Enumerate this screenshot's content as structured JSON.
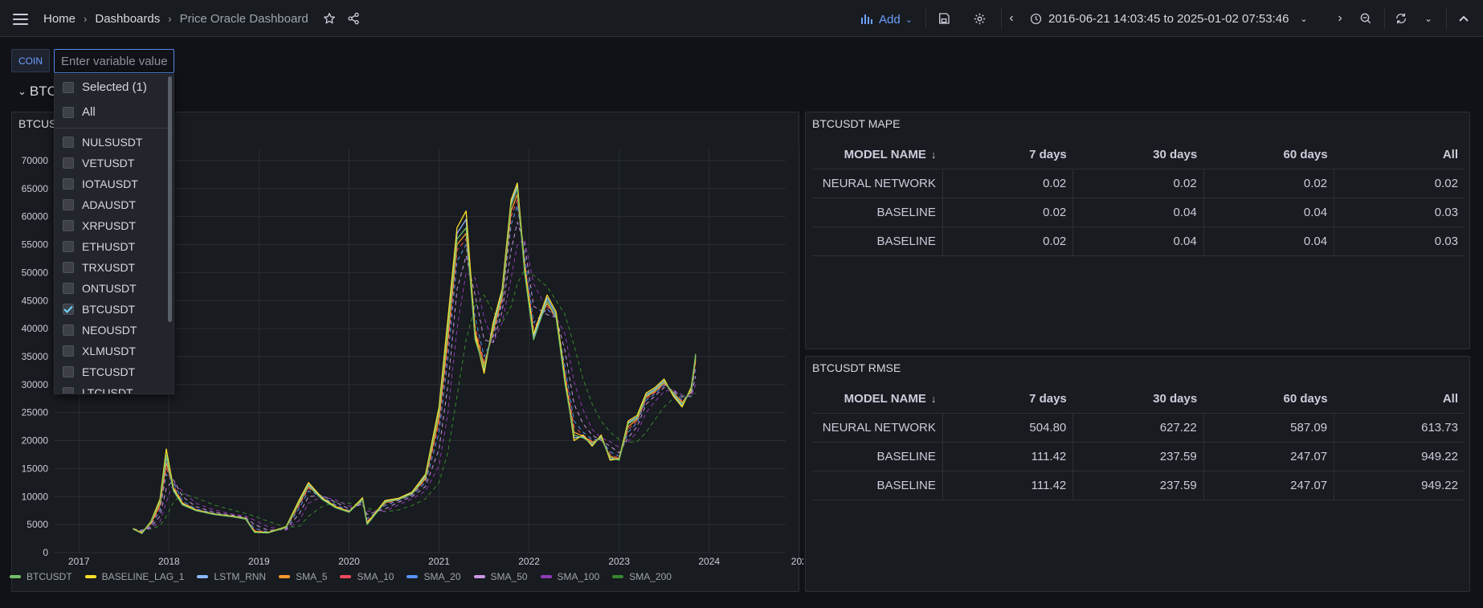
{
  "nav": {
    "home": "Home",
    "dashboards": "Dashboards",
    "current": "Price Oracle Dashboard",
    "add_label": "Add",
    "time_range": "2016-06-21 14:03:45 to 2025-01-02 07:53:46"
  },
  "variable": {
    "label": "COIN",
    "placeholder": "Enter variable value",
    "options_top": [
      "Selected (1)",
      "All"
    ],
    "options": [
      {
        "label": "NULSUSDT",
        "checked": false
      },
      {
        "label": "VETUSDT",
        "checked": false
      },
      {
        "label": "IOTAUSDT",
        "checked": false
      },
      {
        "label": "ADAUSDT",
        "checked": false
      },
      {
        "label": "XRPUSDT",
        "checked": false
      },
      {
        "label": "ETHUSDT",
        "checked": false
      },
      {
        "label": "TRXUSDT",
        "checked": false
      },
      {
        "label": "ONTUSDT",
        "checked": false
      },
      {
        "label": "BTCUSDT",
        "checked": true
      },
      {
        "label": "NEOUSDT",
        "checked": false
      },
      {
        "label": "XLMUSDT",
        "checked": false
      },
      {
        "label": "ETCUSDT",
        "checked": false
      },
      {
        "label": "LTCUSDT",
        "checked": false
      }
    ]
  },
  "row": {
    "title": "BTCUSDT"
  },
  "chart_panel": {
    "title": "BTCUSDT"
  },
  "chart_data": {
    "type": "line",
    "title": "BTCUSDT",
    "xlabel": "",
    "ylabel": "",
    "x_ticks": [
      "2017",
      "2018",
      "2019",
      "2020",
      "2021",
      "2022",
      "2023",
      "2024",
      "202"
    ],
    "y_ticks": [
      "0",
      "5000",
      "10000",
      "15000",
      "20000",
      "25000",
      "30000",
      "35000",
      "40000",
      "45000",
      "50000",
      "55000",
      "60000",
      "65000",
      "70000"
    ],
    "xlim": [
      2016.73,
      2024.85
    ],
    "ylim": [
      0,
      72000
    ],
    "grid": true,
    "legend_position": "bottom-left",
    "x": [
      2017.6,
      2017.7,
      2017.8,
      2017.9,
      2017.97,
      2018.05,
      2018.15,
      2018.3,
      2018.5,
      2018.7,
      2018.85,
      2018.95,
      2019.1,
      2019.3,
      2019.45,
      2019.55,
      2019.7,
      2019.85,
      2020.0,
      2020.15,
      2020.2,
      2020.4,
      2020.55,
      2020.7,
      2020.85,
      2021.0,
      2021.1,
      2021.2,
      2021.3,
      2021.4,
      2021.5,
      2021.6,
      2021.7,
      2021.8,
      2021.87,
      2021.95,
      2022.05,
      2022.2,
      2022.3,
      2022.4,
      2022.5,
      2022.6,
      2022.7,
      2022.8,
      2022.9,
      2023.0,
      2023.1,
      2023.2,
      2023.3,
      2023.4,
      2023.5,
      2023.6,
      2023.7,
      2023.8,
      2023.85
    ],
    "series": [
      {
        "name": "BTCUSDT",
        "color": "#73bf69",
        "values": [
          4200,
          3400,
          5500,
          9000,
          17500,
          11000,
          8500,
          7500,
          6800,
          6400,
          6000,
          3600,
          3500,
          4500,
          9000,
          12000,
          9500,
          8000,
          7200,
          9500,
          5000,
          9000,
          9500,
          10500,
          13500,
          25000,
          40000,
          56000,
          58000,
          38000,
          33000,
          40000,
          46000,
          62000,
          65000,
          50000,
          38000,
          45000,
          42000,
          30000,
          21000,
          20500,
          19500,
          20500,
          17000,
          16500,
          23000,
          24000,
          28000,
          29000,
          30500,
          28500,
          26500,
          29000,
          35500
        ]
      },
      {
        "name": "BASELINE_LAG_1",
        "color": "#fade2a",
        "values": [
          4300,
          3500,
          5600,
          9500,
          18500,
          11500,
          8800,
          7600,
          6900,
          6500,
          6100,
          3700,
          3600,
          4600,
          9500,
          12500,
          9800,
          8200,
          7300,
          9800,
          5200,
          9300,
          9700,
          10800,
          14000,
          26000,
          42000,
          58000,
          61000,
          39000,
          32000,
          41000,
          47000,
          63000,
          66000,
          51000,
          39000,
          46000,
          43000,
          31000,
          20000,
          21000,
          19000,
          21000,
          16500,
          16800,
          23500,
          24500,
          28500,
          29500,
          31000,
          28000,
          26000,
          29500,
          35000
        ]
      },
      {
        "name": "LSTM_RNN",
        "color": "#8ab8ff",
        "values": [
          4250,
          3450,
          5500,
          9200,
          17000,
          11200,
          8600,
          7500,
          6850,
          6450,
          6050,
          3650,
          3550,
          4550,
          9200,
          12200,
          9600,
          8100,
          7250,
          9600,
          5100,
          9100,
          9600,
          10600,
          13700,
          25500,
          41000,
          57000,
          59500,
          38500,
          32500,
          40500,
          46500,
          62500,
          65500,
          50500,
          38500,
          45500,
          42500,
          30500,
          20500,
          20700,
          19200,
          20700,
          16700,
          16600,
          23200,
          24200,
          28200,
          29200,
          30700,
          28200,
          26200,
          29200,
          35200
        ]
      },
      {
        "name": "SMA_5",
        "color": "#ff9830",
        "values": [
          4200,
          3600,
          5200,
          8500,
          16000,
          11500,
          8700,
          7600,
          6850,
          6450,
          6050,
          3800,
          3550,
          4450,
          8800,
          11800,
          9700,
          8200,
          7300,
          9400,
          5400,
          8900,
          9500,
          10500,
          13200,
          24000,
          38500,
          55000,
          57000,
          39500,
          33500,
          39500,
          45500,
          61000,
          64000,
          51000,
          39000,
          44500,
          42000,
          31000,
          21500,
          20800,
          19700,
          20400,
          17200,
          16700,
          22500,
          23800,
          27800,
          28800,
          30300,
          28600,
          26800,
          28800,
          34500
        ]
      },
      {
        "name": "SMA_10",
        "color": "#f2495c",
        "values": [
          4200,
          3700,
          5000,
          8000,
          15000,
          12000,
          8900,
          7700,
          6900,
          6500,
          6100,
          4000,
          3600,
          4400,
          8500,
          11500,
          9800,
          8300,
          7400,
          9300,
          5600,
          8700,
          9400,
          10400,
          13000,
          23000,
          37000,
          54000,
          56000,
          40500,
          34000,
          39000,
          45000,
          60000,
          63000,
          52000,
          40000,
          44000,
          42000,
          32000,
          22500,
          21000,
          19900,
          20300,
          17500,
          16900,
          22000,
          23500,
          27500,
          28600,
          30100,
          28700,
          27000,
          28600,
          34000
        ]
      },
      {
        "name": "SMA_20",
        "color": "#5794f2",
        "values": [
          4200,
          3800,
          4800,
          7500,
          14000,
          12500,
          9200,
          7800,
          7000,
          6550,
          6150,
          4300,
          3700,
          4300,
          8000,
          11000,
          10000,
          8500,
          7500,
          9100,
          6000,
          8400,
          9300,
          10300,
          12500,
          21500,
          35000,
          52000,
          55000,
          42000,
          35000,
          38500,
          44500,
          58500,
          62000,
          53000,
          41000,
          43500,
          42000,
          33000,
          23500,
          21500,
          20200,
          20200,
          18000,
          17200,
          21500,
          23200,
          27200,
          28400,
          29900,
          28800,
          27300,
          28400,
          33000
        ]
      },
      {
        "name": "SMA_50",
        "color": "#ca95e5",
        "values": [
          4200,
          3900,
          4500,
          6500,
          11500,
          13000,
          10000,
          8200,
          7200,
          6700,
          6300,
          5000,
          4000,
          4100,
          7000,
          10000,
          10200,
          9000,
          7800,
          8700,
          6800,
          7800,
          9000,
          10000,
          11800,
          18500,
          30000,
          47000,
          53000,
          46000,
          38000,
          37500,
          43000,
          54000,
          59000,
          55000,
          44000,
          42500,
          42000,
          36000,
          26500,
          23000,
          21000,
          20000,
          19000,
          17800,
          20500,
          22500,
          26500,
          28000,
          29500,
          29000,
          27800,
          28000,
          31500
        ]
      },
      {
        "name": "SMA_100",
        "color": "#8f3bb8",
        "values": [
          4200,
          4000,
          4300,
          5500,
          9000,
          12500,
          11000,
          8800,
          7600,
          6900,
          6500,
          5800,
          4600,
          4000,
          5800,
          8800,
          10000,
          9400,
          8300,
          8400,
          7400,
          7400,
          8500,
          9600,
          11000,
          15500,
          25000,
          40000,
          50000,
          49000,
          42000,
          37500,
          41000,
          49000,
          55000,
          56000,
          48000,
          43500,
          42000,
          39000,
          30500,
          25500,
          22000,
          20500,
          19800,
          18800,
          19800,
          21500,
          25000,
          27000,
          28800,
          29000,
          28200,
          27800,
          30000
        ]
      },
      {
        "name": "SMA_200",
        "color": "#37872d",
        "values": [
          4200,
          4100,
          4200,
          4800,
          6500,
          9000,
          10500,
          9800,
          8500,
          7600,
          7000,
          6500,
          5600,
          4500,
          4700,
          6500,
          8200,
          9000,
          8800,
          8400,
          7900,
          7300,
          7600,
          8400,
          9600,
          12500,
          18000,
          28000,
          38000,
          44000,
          46000,
          43000,
          41000,
          44000,
          48000,
          50500,
          49500,
          47500,
          45000,
          42500,
          37000,
          31000,
          26500,
          23500,
          21500,
          20200,
          19700,
          19800,
          21500,
          23800,
          26000,
          27500,
          28000,
          27800,
          28500
        ]
      }
    ]
  },
  "mape": {
    "title": "BTCUSDT MAPE",
    "columns": [
      "MODEL NAME",
      "7 days",
      "30 days",
      "60 days",
      "All"
    ],
    "rows": [
      [
        "NEURAL NETWORK",
        "0.02",
        "0.02",
        "0.02",
        "0.02"
      ],
      [
        "BASELINE",
        "0.02",
        "0.04",
        "0.04",
        "0.03"
      ],
      [
        "BASELINE",
        "0.02",
        "0.04",
        "0.04",
        "0.03"
      ]
    ]
  },
  "rmse": {
    "title": "BTCUSDT RMSE",
    "columns": [
      "MODEL NAME",
      "7 days",
      "30 days",
      "60 days",
      "All"
    ],
    "rows": [
      [
        "NEURAL NETWORK",
        "504.80",
        "627.22",
        "587.09",
        "613.73"
      ],
      [
        "BASELINE",
        "111.42",
        "237.59",
        "247.07",
        "949.22"
      ],
      [
        "BASELINE",
        "111.42",
        "237.59",
        "247.07",
        "949.22"
      ]
    ]
  }
}
